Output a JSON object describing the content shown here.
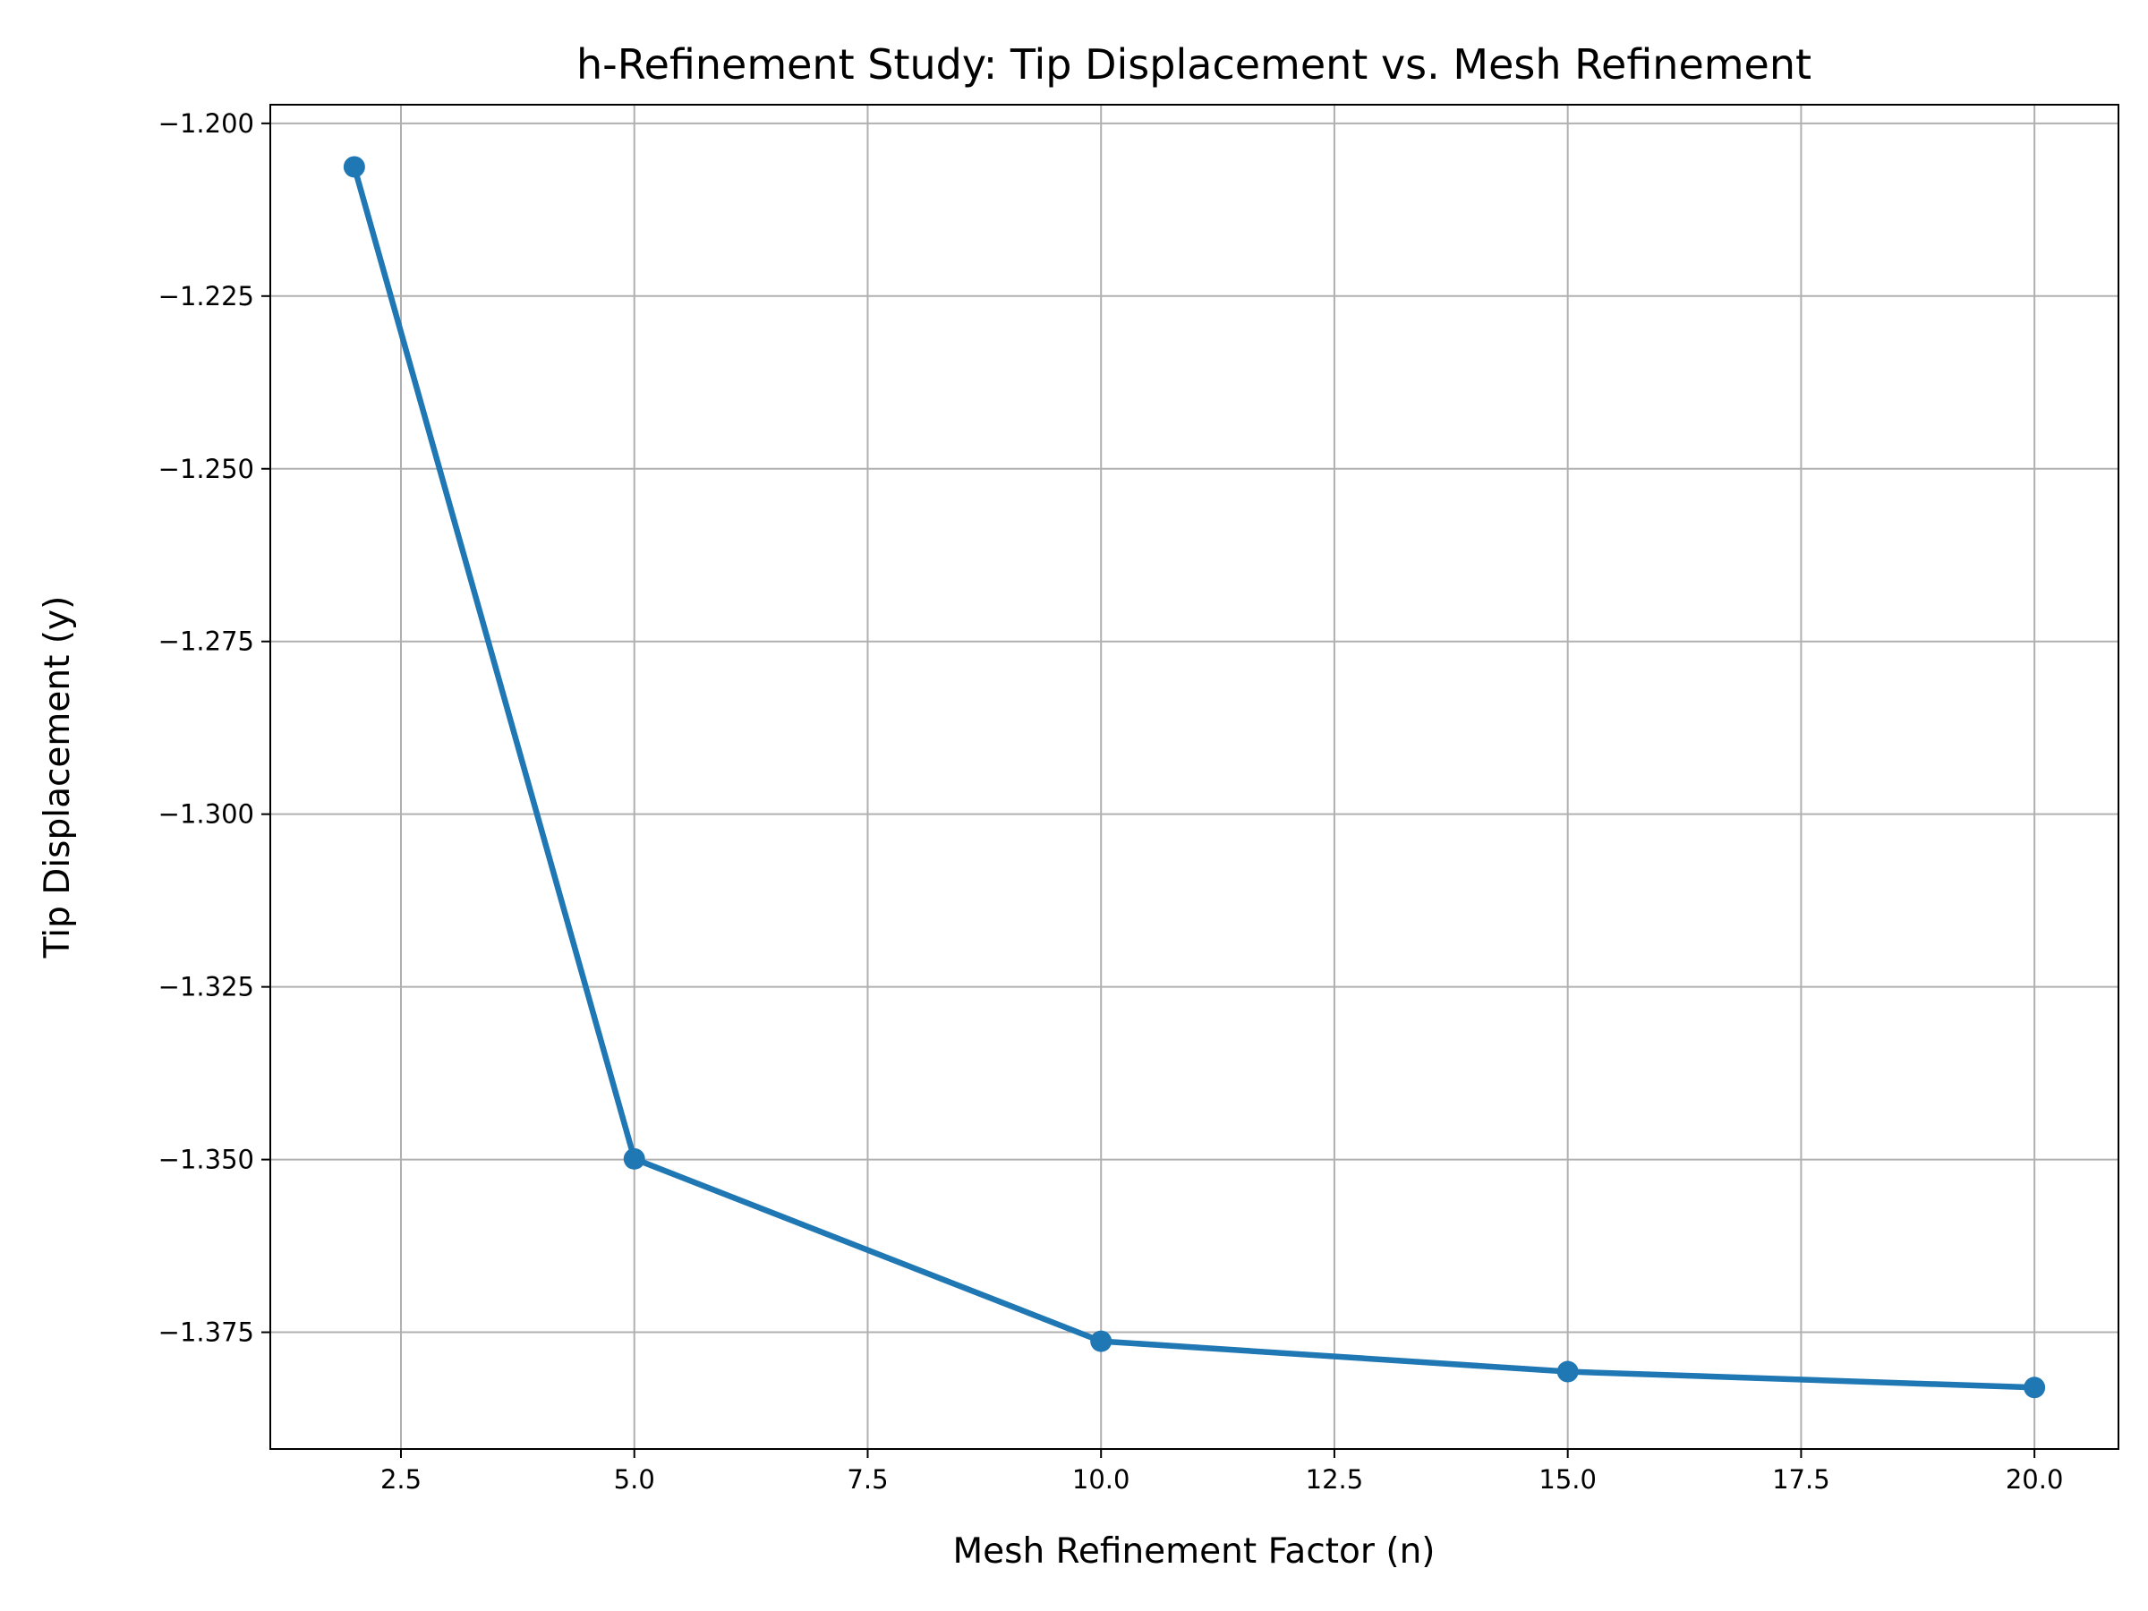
{
  "chart_data": {
    "type": "line",
    "title": "h-Refinement Study: Tip Displacement vs. Mesh Refinement",
    "xlabel": "Mesh Refinement Factor (n)",
    "ylabel": "Tip Displacement (y)",
    "x": [
      2,
      5,
      10,
      15,
      20
    ],
    "series": [
      {
        "values": [
          -1.2063,
          -1.3499,
          -1.3763,
          -1.3807,
          -1.383
        ],
        "color": "#1f77b4",
        "marker": "circle"
      }
    ],
    "xlim": [
      1.1,
      20.9
    ],
    "ylim": [
      -1.3919,
      -1.1973
    ],
    "xticks": [
      2.5,
      5.0,
      7.5,
      10.0,
      12.5,
      15.0,
      17.5,
      20.0
    ],
    "xtick_labels": [
      "2.5",
      "5.0",
      "7.5",
      "10.0",
      "12.5",
      "15.0",
      "17.5",
      "20.0"
    ],
    "yticks": [
      -1.2,
      -1.225,
      -1.25,
      -1.275,
      -1.3,
      -1.325,
      -1.35,
      -1.375
    ],
    "ytick_labels": [
      "−1.200",
      "−1.225",
      "−1.250",
      "−1.275",
      "−1.300",
      "−1.325",
      "−1.350",
      "−1.375"
    ],
    "grid": true
  }
}
